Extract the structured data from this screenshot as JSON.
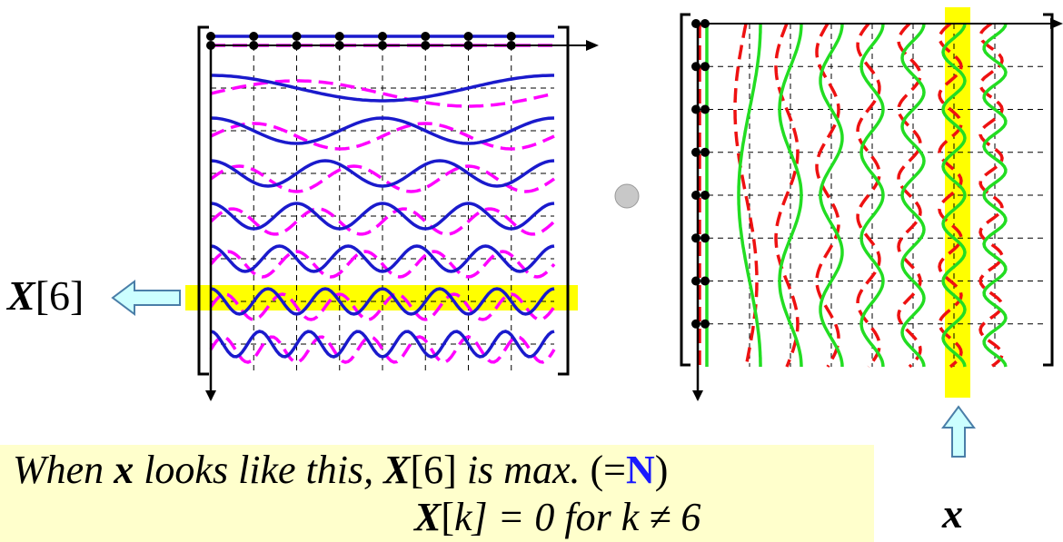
{
  "left_label": {
    "symbol": "X",
    "index": "[6]"
  },
  "caption": {
    "line1": {
      "p1": "When ",
      "p2": "x",
      "p3": " looks like this, ",
      "p4": "X",
      "p5": "[6]",
      "p6": " is max. ",
      "p7": "(=",
      "p8": "N",
      "p9": ")"
    },
    "line2": {
      "p1": "X",
      "p2": "[",
      "p3": "k",
      "p4": "] = 0   for  ",
      "p5": "k",
      "p6": " ≠ 6"
    }
  },
  "right_label": "x",
  "colors": {
    "cos_row": "#1a1acc",
    "sin_row": "#ff00ff",
    "cos_col": "#22dd22",
    "sin_col": "#ee1111",
    "highlight": "#ffff00",
    "arrow_fill": "#ccffff",
    "caption_bg": "#ffffcc",
    "dot": "#c8c8c8"
  }
}
